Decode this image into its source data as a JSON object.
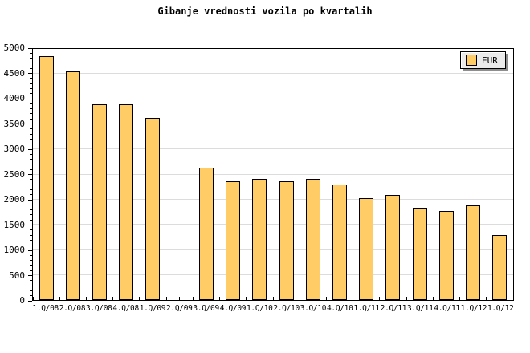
{
  "title": "Gibanje vrednosti vozila po kvartalih",
  "legend": {
    "label": "EUR",
    "swatch_color": "#FFCC66"
  },
  "chart_data": {
    "type": "bar",
    "title": "Gibanje vrednosti vozila po kvartalih",
    "categories": [
      "1.Q/08",
      "2.Q/08",
      "3.Q/08",
      "4.Q/08",
      "1.Q/09",
      "2.Q/09",
      "3.Q/09",
      "4.Q/09",
      "1.Q/10",
      "2.Q/10",
      "3.Q/10",
      "4.Q/10",
      "1.Q/11",
      "2.Q/11",
      "3.Q/11",
      "4.Q/11",
      "1.Q/12",
      "1.Q/12"
    ],
    "series": [
      {
        "name": "EUR",
        "values": [
          4850,
          4560,
          3900,
          3900,
          3620,
          0,
          2640,
          2360,
          2420,
          2360,
          2420,
          2300,
          2030,
          2100,
          1830,
          1770,
          1890,
          1300
        ]
      }
    ],
    "xlabel": "",
    "ylabel": "",
    "ylim": [
      0,
      5000
    ],
    "ytick_step": 500,
    "ytick_minor_step": 100,
    "ytick_labels": [
      "0",
      "500",
      "1000",
      "1500",
      "2000",
      "2500",
      "3000",
      "3500",
      "4000",
      "4500",
      "5000"
    ],
    "grid": "horizontal",
    "legend_position": "top-right",
    "bar_color": "#FFCC66",
    "bar_border_color": "#000000",
    "gridline_color": "#DCDCDC",
    "background_color": "#FFFFFF"
  }
}
